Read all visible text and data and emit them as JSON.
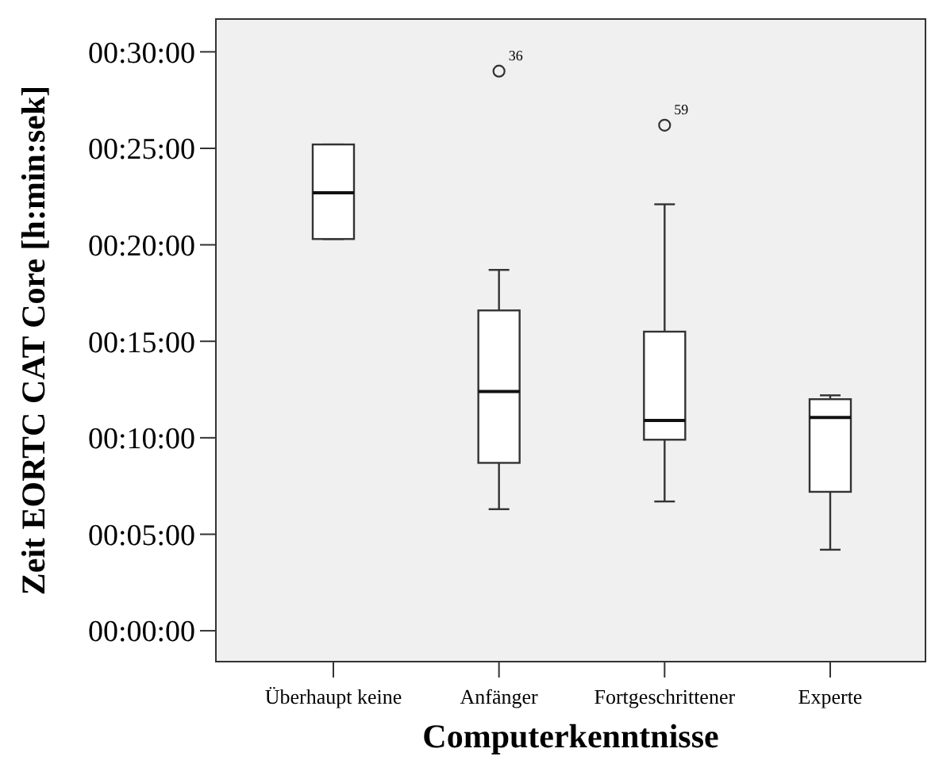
{
  "chart_data": {
    "type": "box",
    "xlabel": "Computerkenntnisse",
    "ylabel": "Zeit EORTC CAT Core [h:min:sek]",
    "categories": [
      "Überhaupt keine",
      "Anfänger",
      "Fortgeschrittener",
      "Experte"
    ],
    "boxes": [
      {
        "low": 20.3,
        "q1": 20.3,
        "median": 22.7,
        "q3": 25.2,
        "high": 25.2
      },
      {
        "low": 6.3,
        "q1": 8.7,
        "median": 12.4,
        "q3": 16.6,
        "high": 18.7,
        "outliers": [
          29.0
        ]
      },
      {
        "low": 6.7,
        "q1": 9.9,
        "median": 10.9,
        "q3": 15.5,
        "high": 22.1,
        "outliers": [
          26.2
        ]
      },
      {
        "low": 4.2,
        "q1": 7.2,
        "median": 11.05,
        "q3": 12.0,
        "high": 12.2
      }
    ],
    "ylim": [
      -1.6,
      31.7
    ],
    "yticks": [
      {
        "value": 0,
        "label": "00:00:00"
      },
      {
        "value": 5,
        "label": "00:05:00"
      },
      {
        "value": 10,
        "label": "00:10:00"
      },
      {
        "value": 15,
        "label": "00:15:00"
      },
      {
        "value": 20,
        "label": "00:20:00"
      },
      {
        "value": 25,
        "label": "00:25:00"
      },
      {
        "value": 30,
        "label": "00:30:00"
      }
    ],
    "annotations": [
      "36",
      "59"
    ],
    "grid": false
  }
}
